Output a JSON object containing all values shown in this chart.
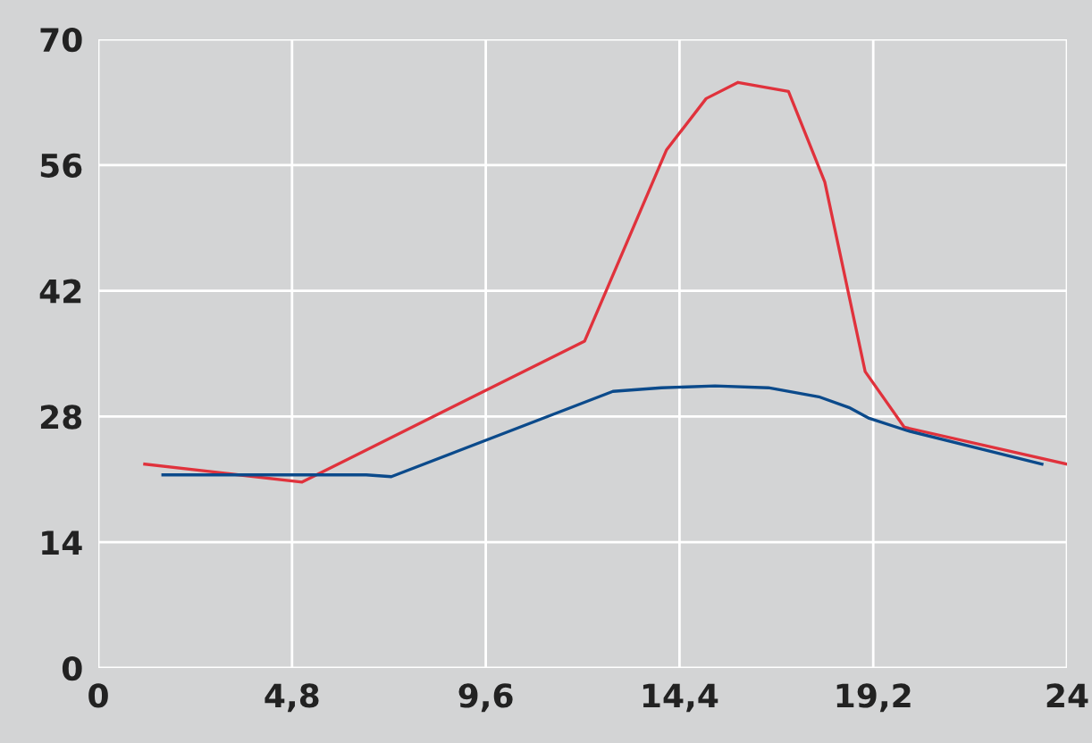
{
  "chart_data": {
    "type": "line",
    "xlim": [
      0,
      24
    ],
    "ylim": [
      0,
      70
    ],
    "xticks": [
      0,
      {
        "value": 4.8,
        "label": "4,8"
      },
      {
        "value": 9.6,
        "label": "9,6"
      },
      {
        "value": 14.4,
        "label": "14,4"
      },
      {
        "value": 19.2,
        "label": "19,2"
      },
      24
    ],
    "yticks": [
      0,
      14,
      28,
      42,
      56,
      70
    ],
    "grid": true,
    "marker": "none",
    "line_style": "solid",
    "series": [
      {
        "color": "#e0323c",
        "x": [
          1.15,
          5.05,
          12.05,
          14.08,
          15.06,
          15.85,
          17.1,
          18.0,
          19.0,
          19.97,
          24
        ],
        "values": [
          22.7,
          20.7,
          36.4,
          57.7,
          63.4,
          65.2,
          64.2,
          54.1,
          33.0,
          26.8,
          22.7
        ]
      },
      {
        "color": "#0b4a8b",
        "x": [
          1.6,
          6.64,
          7.26,
          12.75,
          13.95,
          15.28,
          16.6,
          17.85,
          18.6,
          19.1,
          20.06,
          23.38
        ],
        "values": [
          21.5,
          21.5,
          21.3,
          30.8,
          31.2,
          31.4,
          31.2,
          30.2,
          29.0,
          27.8,
          26.4,
          22.7
        ]
      }
    ]
  }
}
